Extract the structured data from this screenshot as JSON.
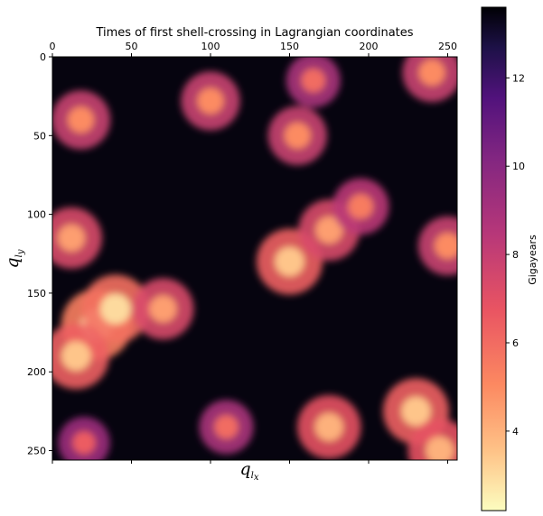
{
  "chart_data": {
    "type": "heatmap",
    "title": "Times of first shell-crossing in Lagrangian coordinates",
    "xlabel": {
      "base": "q",
      "sub": "l",
      "subsub": "x"
    },
    "ylabel": {
      "base": "q",
      "sub": "l",
      "subsub": "y"
    },
    "x_ticks": [
      0,
      50,
      100,
      150,
      200,
      250
    ],
    "y_ticks": [
      0,
      50,
      100,
      150,
      200,
      250
    ],
    "xlim": [
      0,
      256
    ],
    "ylim": [
      256,
      0
    ],
    "x_tick_position": "top",
    "grid": false,
    "colormap": "magma_r",
    "colorbar": {
      "label": "Gigayears",
      "ticks": [
        4,
        6,
        8,
        10,
        12
      ],
      "range": [
        2.2,
        13.6
      ]
    },
    "value_range_gyr": [
      2.2,
      13.6
    ],
    "structures": [
      {
        "x": 28,
        "y": 170,
        "value": 2.5
      },
      {
        "x": 40,
        "y": 160,
        "value": 3.0
      },
      {
        "x": 15,
        "y": 190,
        "value": 3.5
      },
      {
        "x": 70,
        "y": 160,
        "value": 4.5
      },
      {
        "x": 150,
        "y": 130,
        "value": 3.5
      },
      {
        "x": 175,
        "y": 110,
        "value": 4.5
      },
      {
        "x": 195,
        "y": 95,
        "value": 5.5
      },
      {
        "x": 155,
        "y": 50,
        "value": 5.0
      },
      {
        "x": 165,
        "y": 15,
        "value": 6.0
      },
      {
        "x": 100,
        "y": 28,
        "value": 5.0
      },
      {
        "x": 18,
        "y": 40,
        "value": 5.0
      },
      {
        "x": 12,
        "y": 115,
        "value": 4.5
      },
      {
        "x": 175,
        "y": 235,
        "value": 4.0
      },
      {
        "x": 230,
        "y": 225,
        "value": 3.5
      },
      {
        "x": 245,
        "y": 250,
        "value": 4.0
      },
      {
        "x": 240,
        "y": 10,
        "value": 5.0
      },
      {
        "x": 250,
        "y": 120,
        "value": 5.0
      },
      {
        "x": 110,
        "y": 235,
        "value": 6.0
      },
      {
        "x": 20,
        "y": 245,
        "value": 6.5
      }
    ]
  }
}
